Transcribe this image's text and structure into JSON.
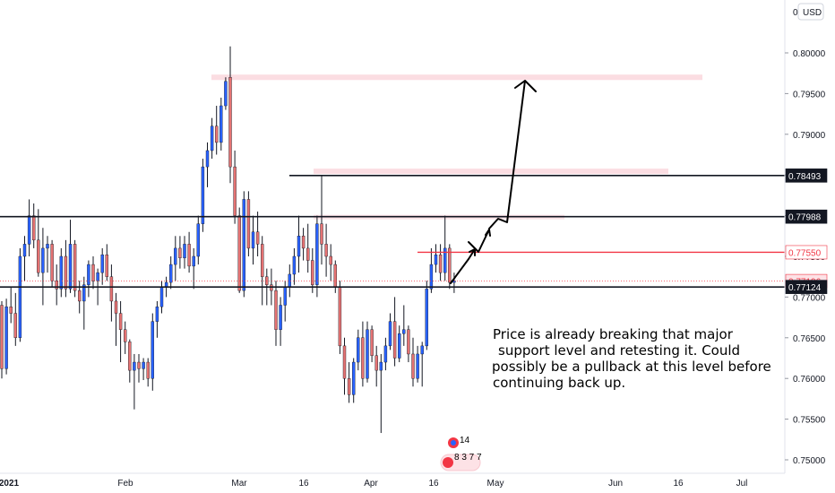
{
  "chart_data": {
    "type": "candlestick",
    "currency": "USD",
    "y_axis": {
      "min": 0.7474,
      "max": 0.8058,
      "ticks": [
        "0.80000",
        "0.79500",
        "0.79000",
        "0.78500",
        "0.78000",
        "0.77500",
        "0.77000",
        "0.76500",
        "0.76000",
        "0.75500",
        "0.75000"
      ],
      "top_partial": "0"
    },
    "x_axis": {
      "ticks": [
        "2021",
        "Feb",
        "Mar",
        "16",
        "Apr",
        "16",
        "May",
        "Jun",
        "16",
        "Jul"
      ]
    },
    "level_labels": [
      {
        "value": "0.78493",
        "kind": "black"
      },
      {
        "value": "0.77988",
        "kind": "black"
      },
      {
        "value": "0.77550",
        "kind": "red"
      },
      {
        "value": "0.77196",
        "kind": "pink"
      },
      {
        "value": "0.77124",
        "kind": "black"
      }
    ],
    "candles": [
      [
        0.769,
        0.7695,
        0.76,
        0.7612
      ],
      [
        0.7612,
        0.7698,
        0.7605,
        0.7688
      ],
      [
        0.7688,
        0.7712,
        0.7668,
        0.768
      ],
      [
        0.768,
        0.7705,
        0.764,
        0.765
      ],
      [
        0.765,
        0.776,
        0.7645,
        0.775
      ],
      [
        0.775,
        0.7775,
        0.772,
        0.7765
      ],
      [
        0.7765,
        0.782,
        0.775,
        0.78
      ],
      [
        0.78,
        0.7815,
        0.776,
        0.777
      ],
      [
        0.777,
        0.7808,
        0.7725,
        0.773
      ],
      [
        0.773,
        0.7785,
        0.769,
        0.776
      ],
      [
        0.776,
        0.7775,
        0.773,
        0.7765
      ],
      [
        0.7765,
        0.777,
        0.7712,
        0.772
      ],
      [
        0.772,
        0.774,
        0.769,
        0.771
      ],
      [
        0.771,
        0.776,
        0.77,
        0.775
      ],
      [
        0.775,
        0.777,
        0.77,
        0.771
      ],
      [
        0.771,
        0.7795,
        0.7705,
        0.7765
      ],
      [
        0.7765,
        0.777,
        0.77,
        0.7708
      ],
      [
        0.7708,
        0.772,
        0.768,
        0.7695
      ],
      [
        0.7695,
        0.7725,
        0.766,
        0.7715
      ],
      [
        0.7715,
        0.7745,
        0.77,
        0.774
      ],
      [
        0.774,
        0.775,
        0.771,
        0.772
      ],
      [
        0.772,
        0.7735,
        0.769,
        0.773
      ],
      [
        0.773,
        0.776,
        0.7715,
        0.7752
      ],
      [
        0.7752,
        0.7765,
        0.772,
        0.7725
      ],
      [
        0.7725,
        0.774,
        0.767,
        0.7695
      ],
      [
        0.7695,
        0.7705,
        0.764,
        0.768
      ],
      [
        0.768,
        0.7695,
        0.762,
        0.766
      ],
      [
        0.766,
        0.767,
        0.763,
        0.7645
      ],
      [
        0.7645,
        0.7648,
        0.7595,
        0.761
      ],
      [
        0.761,
        0.763,
        0.7562,
        0.762
      ],
      [
        0.762,
        0.763,
        0.7595,
        0.7612
      ],
      [
        0.7612,
        0.7625,
        0.7598,
        0.762
      ],
      [
        0.762,
        0.7625,
        0.759,
        0.76
      ],
      [
        0.76,
        0.768,
        0.7585,
        0.767
      ],
      [
        0.767,
        0.7695,
        0.765,
        0.7688
      ],
      [
        0.7688,
        0.772,
        0.768,
        0.7712
      ],
      [
        0.7712,
        0.7725,
        0.77,
        0.7718
      ],
      [
        0.7718,
        0.775,
        0.771,
        0.774
      ],
      [
        0.774,
        0.7775,
        0.772,
        0.776
      ],
      [
        0.776,
        0.7775,
        0.7735,
        0.7748
      ],
      [
        0.7748,
        0.7775,
        0.7735,
        0.7765
      ],
      [
        0.7765,
        0.778,
        0.773,
        0.7738
      ],
      [
        0.7738,
        0.776,
        0.771,
        0.775
      ],
      [
        0.775,
        0.78,
        0.774,
        0.779
      ],
      [
        0.779,
        0.787,
        0.778,
        0.786
      ],
      [
        0.786,
        0.789,
        0.7835,
        0.788
      ],
      [
        0.788,
        0.792,
        0.787,
        0.791
      ],
      [
        0.791,
        0.7935,
        0.7875,
        0.789
      ],
      [
        0.789,
        0.7945,
        0.788,
        0.7935
      ],
      [
        0.7935,
        0.797,
        0.793,
        0.7965
      ],
      [
        0.797,
        0.8008,
        0.784,
        0.786
      ],
      [
        0.786,
        0.788,
        0.779,
        0.78
      ],
      [
        0.78,
        0.781,
        0.7705,
        0.7708
      ],
      [
        0.7708,
        0.783,
        0.77,
        0.782
      ],
      [
        0.782,
        0.783,
        0.775,
        0.776
      ],
      [
        0.776,
        0.78,
        0.774,
        0.778
      ],
      [
        0.778,
        0.7805,
        0.775,
        0.7765
      ],
      [
        0.7765,
        0.7775,
        0.769,
        0.7725
      ],
      [
        0.7725,
        0.7735,
        0.769,
        0.7715
      ],
      [
        0.7715,
        0.7735,
        0.769,
        0.7708
      ],
      [
        0.7708,
        0.772,
        0.764,
        0.766
      ],
      [
        0.766,
        0.77,
        0.764,
        0.769
      ],
      [
        0.769,
        0.772,
        0.767,
        0.7712
      ],
      [
        0.7712,
        0.774,
        0.77,
        0.7728
      ],
      [
        0.7728,
        0.776,
        0.7715,
        0.775
      ],
      [
        0.775,
        0.78,
        0.773,
        0.7775
      ],
      [
        0.7775,
        0.7785,
        0.7745,
        0.776
      ],
      [
        0.776,
        0.779,
        0.773,
        0.7745
      ],
      [
        0.7745,
        0.776,
        0.7705,
        0.7715
      ],
      [
        0.7715,
        0.78,
        0.77,
        0.779
      ],
      [
        0.779,
        0.785,
        0.774,
        0.7765
      ],
      [
        0.7765,
        0.779,
        0.7725,
        0.775
      ],
      [
        0.775,
        0.7765,
        0.772,
        0.774
      ],
      [
        0.774,
        0.7745,
        0.7705,
        0.7712
      ],
      [
        0.7712,
        0.772,
        0.763,
        0.764
      ],
      [
        0.764,
        0.765,
        0.758,
        0.76
      ],
      [
        0.76,
        0.762,
        0.757,
        0.758
      ],
      [
        0.758,
        0.7625,
        0.757,
        0.762
      ],
      [
        0.762,
        0.766,
        0.761,
        0.765
      ],
      [
        0.765,
        0.767,
        0.759,
        0.76
      ],
      [
        0.76,
        0.767,
        0.7595,
        0.766
      ],
      [
        0.766,
        0.7665,
        0.762,
        0.7628
      ],
      [
        0.7628,
        0.764,
        0.759,
        0.761
      ],
      [
        0.761,
        0.763,
        0.7533,
        0.762
      ],
      [
        0.762,
        0.765,
        0.761,
        0.764
      ],
      [
        0.764,
        0.768,
        0.7635,
        0.767
      ],
      [
        0.767,
        0.77,
        0.7615,
        0.7625
      ],
      [
        0.7625,
        0.7665,
        0.762,
        0.7655
      ],
      [
        0.7655,
        0.769,
        0.764,
        0.766
      ],
      [
        0.766,
        0.7665,
        0.762,
        0.763
      ],
      [
        0.763,
        0.765,
        0.759,
        0.76
      ],
      [
        0.76,
        0.764,
        0.7595,
        0.763
      ],
      [
        0.763,
        0.7645,
        0.759,
        0.764
      ],
      [
        0.764,
        0.772,
        0.7635,
        0.771
      ],
      [
        0.771,
        0.776,
        0.7705,
        0.774
      ],
      [
        0.774,
        0.7765,
        0.773,
        0.7752
      ],
      [
        0.7752,
        0.7765,
        0.772,
        0.773
      ],
      [
        0.773,
        0.78,
        0.772,
        0.776
      ],
      [
        0.776,
        0.7765,
        0.771,
        0.7718
      ],
      [
        0.7718,
        0.773,
        0.7705,
        0.772
      ]
    ],
    "colors": {
      "up": "#2962ff",
      "down": "#e57373",
      "wick": "#131722",
      "level_black": "#131722",
      "level_red": "#f23645",
      "zone_pink": "#f8c7cf"
    },
    "annotation": [
      "Price is already breaking that major",
      "support level and retesting it. Could",
      "possibly be a pullback at this level before",
      "continuing back up."
    ],
    "badges": [
      "14",
      "8 3 7 7"
    ]
  }
}
